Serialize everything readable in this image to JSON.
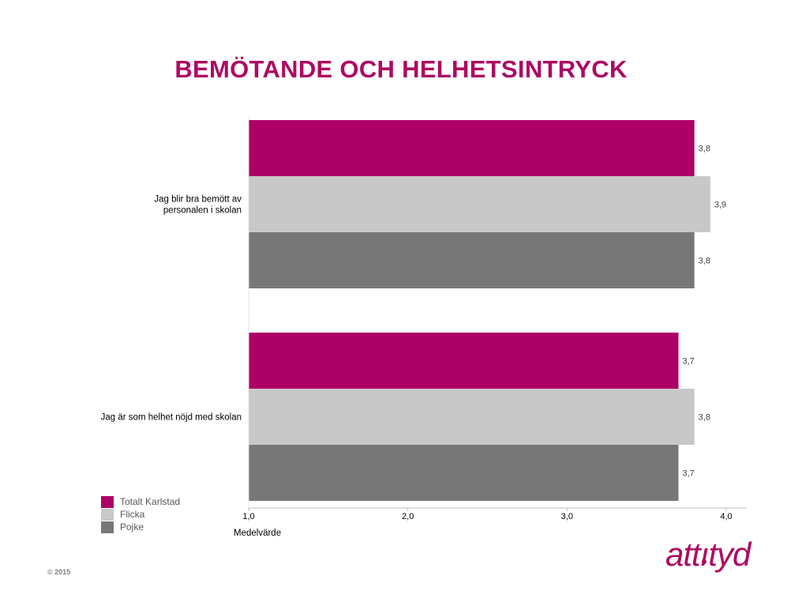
{
  "page": {
    "title": "BEMÖTANDE OCH HELHETSINTRYCK",
    "copyright": "© 2015",
    "logo_text": "attityd"
  },
  "colors": {
    "accent": "#ad0a63",
    "series": [
      "#ad0066",
      "#c8c8c8",
      "#777777"
    ],
    "axis": "#bfbfbf",
    "text": "#000000"
  },
  "chart_data": {
    "type": "bar",
    "orientation": "horizontal",
    "categories": [
      [
        "Jag blir bra bemött av",
        "personalen i skolan"
      ],
      [
        "Jag är som helhet nöjd med skolan"
      ]
    ],
    "series": [
      {
        "name": "Totalt Karlstad",
        "values": [
          3.8,
          3.7
        ],
        "labels": [
          "3,8",
          "3,7"
        ]
      },
      {
        "name": "Flicka",
        "values": [
          3.9,
          3.8
        ],
        "labels": [
          "3,9",
          "3,8"
        ]
      },
      {
        "name": "Pojke",
        "values": [
          3.8,
          3.7
        ],
        "labels": [
          "3,8",
          "3,7"
        ]
      }
    ],
    "xlim": [
      1.0,
      4.0
    ],
    "xticks": [
      1.0,
      2.0,
      3.0,
      4.0
    ],
    "xtick_labels": [
      "1,0",
      "2,0",
      "3,0",
      "4,0"
    ],
    "xlabel": "Medelvärde",
    "grid": false,
    "legend_position": "bottom-left"
  }
}
